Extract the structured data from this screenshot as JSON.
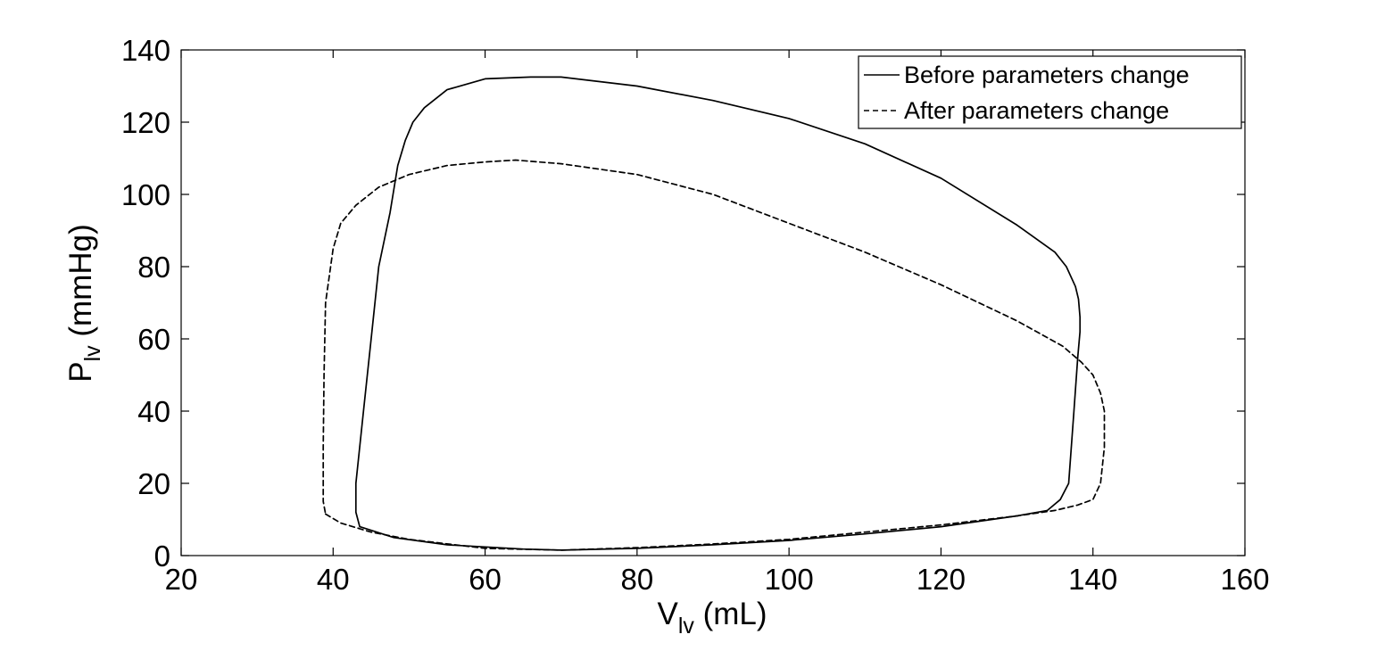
{
  "chart_data": {
    "type": "line",
    "xlabel": {
      "main": "V",
      "sub": "lv",
      "unit": " (mL)"
    },
    "ylabel": {
      "main": "P",
      "sub": "lv",
      "unit": " (mmHg)"
    },
    "xlim": [
      20,
      160
    ],
    "ylim": [
      0,
      140
    ],
    "xticks": [
      "20",
      "40",
      "60",
      "80",
      "100",
      "120",
      "140",
      "160"
    ],
    "yticks": [
      "0",
      "20",
      "40",
      "60",
      "80",
      "100",
      "120",
      "140"
    ],
    "grid": false,
    "legend_position": "top-right",
    "series": [
      {
        "name": "Before parameters change",
        "style": "solid",
        "color": "#000000",
        "points": [
          [
            43.5,
            8
          ],
          [
            48,
            5
          ],
          [
            55,
            3
          ],
          [
            65,
            1.8
          ],
          [
            70,
            1.5
          ],
          [
            80,
            2
          ],
          [
            90,
            3
          ],
          [
            100,
            4.2
          ],
          [
            110,
            6
          ],
          [
            120,
            8
          ],
          [
            130,
            11
          ],
          [
            134,
            12.5
          ],
          [
            135.7,
            15.5
          ],
          [
            136.8,
            20
          ],
          [
            137.5,
            40
          ],
          [
            138,
            55
          ],
          [
            138.3,
            62
          ],
          [
            138.3,
            66
          ],
          [
            138.1,
            71
          ],
          [
            137.7,
            74.5
          ],
          [
            136.5,
            80
          ],
          [
            135,
            84
          ],
          [
            130,
            91.5
          ],
          [
            120,
            104.5
          ],
          [
            110,
            114
          ],
          [
            100,
            121
          ],
          [
            90,
            126
          ],
          [
            80,
            130
          ],
          [
            70,
            132.5
          ],
          [
            66,
            132.5
          ],
          [
            60,
            132
          ],
          [
            55,
            129
          ],
          [
            52,
            124
          ],
          [
            50.5,
            120
          ],
          [
            49.5,
            115
          ],
          [
            48.5,
            108
          ],
          [
            47.5,
            95
          ],
          [
            46,
            80
          ],
          [
            45,
            60
          ],
          [
            44,
            40
          ],
          [
            43,
            20
          ],
          [
            43,
            12
          ],
          [
            43.5,
            8
          ]
        ]
      },
      {
        "name": "After parameters change",
        "style": "dashed",
        "color": "#000000",
        "points": [
          [
            39,
            11.5
          ],
          [
            41,
            9
          ],
          [
            45,
            6.5
          ],
          [
            50,
            4.5
          ],
          [
            60,
            2
          ],
          [
            70,
            1.5
          ],
          [
            80,
            2.2
          ],
          [
            90,
            3.2
          ],
          [
            100,
            4.5
          ],
          [
            110,
            6.5
          ],
          [
            120,
            8.5
          ],
          [
            130,
            11
          ],
          [
            135,
            12.5
          ],
          [
            138,
            14
          ],
          [
            140,
            15.5
          ],
          [
            141,
            20
          ],
          [
            141.5,
            30
          ],
          [
            141.5,
            40
          ],
          [
            141,
            45
          ],
          [
            140,
            50
          ],
          [
            138.5,
            53.5
          ],
          [
            136,
            58
          ],
          [
            130,
            65
          ],
          [
            120,
            75
          ],
          [
            110,
            84
          ],
          [
            100,
            92
          ],
          [
            90,
            100
          ],
          [
            80,
            105.5
          ],
          [
            70,
            108.5
          ],
          [
            64,
            109.5
          ],
          [
            60,
            109
          ],
          [
            55,
            108
          ],
          [
            50,
            105.5
          ],
          [
            46,
            102
          ],
          [
            43,
            97
          ],
          [
            41,
            92
          ],
          [
            40,
            85
          ],
          [
            39,
            70
          ],
          [
            38.8,
            50
          ],
          [
            38.7,
            30
          ],
          [
            38.7,
            15
          ],
          [
            39,
            11.5
          ]
        ]
      }
    ]
  }
}
